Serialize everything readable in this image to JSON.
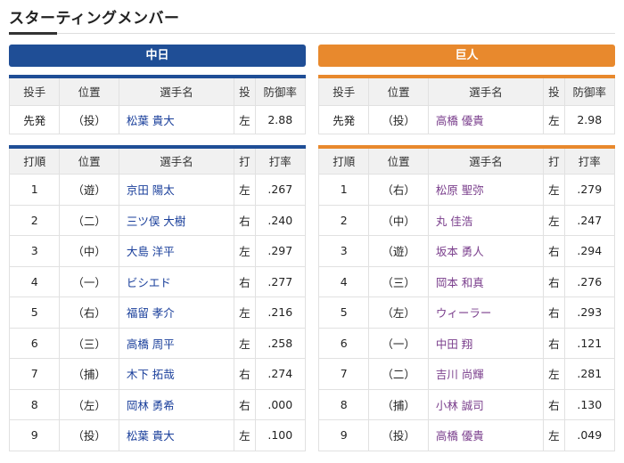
{
  "page": {
    "title": "スターティングメンバー",
    "colors": {
      "home_team": "#1f4e96",
      "away_team": "#e8892d",
      "home_name": "#1a3f9b",
      "away_name": "#7a3e8c"
    }
  },
  "pitcher_headers": [
    "投手",
    "位置",
    "選手名",
    "投",
    "防御率"
  ],
  "lineup_headers": [
    "打順",
    "位置",
    "選手名",
    "打",
    "打率"
  ],
  "teams": [
    {
      "name": "中日",
      "pitcher": {
        "role": "先発",
        "pos": "（投）",
        "name": "松葉 貴大",
        "hand": "左",
        "era": "2.88"
      },
      "lineup": [
        {
          "order": "1",
          "pos": "（遊）",
          "name": "京田 陽太",
          "hand": "左",
          "avg": ".267"
        },
        {
          "order": "2",
          "pos": "（二）",
          "name": "三ツ俣 大樹",
          "hand": "右",
          "avg": ".240"
        },
        {
          "order": "3",
          "pos": "（中）",
          "name": "大島 洋平",
          "hand": "左",
          "avg": ".297"
        },
        {
          "order": "4",
          "pos": "（一）",
          "name": "ビシエド",
          "hand": "右",
          "avg": ".277"
        },
        {
          "order": "5",
          "pos": "（右）",
          "name": "福留 孝介",
          "hand": "左",
          "avg": ".216"
        },
        {
          "order": "6",
          "pos": "（三）",
          "name": "高橋 周平",
          "hand": "左",
          "avg": ".258"
        },
        {
          "order": "7",
          "pos": "（捕）",
          "name": "木下 拓哉",
          "hand": "右",
          "avg": ".274"
        },
        {
          "order": "8",
          "pos": "（左）",
          "name": "岡林 勇希",
          "hand": "右",
          "avg": ".000"
        },
        {
          "order": "9",
          "pos": "（投）",
          "name": "松葉 貴大",
          "hand": "左",
          "avg": ".100"
        }
      ]
    },
    {
      "name": "巨人",
      "pitcher": {
        "role": "先発",
        "pos": "（投）",
        "name": "高橋 優貴",
        "hand": "左",
        "era": "2.98"
      },
      "lineup": [
        {
          "order": "1",
          "pos": "（右）",
          "name": "松原 聖弥",
          "hand": "左",
          "avg": ".279"
        },
        {
          "order": "2",
          "pos": "（中）",
          "name": "丸 佳浩",
          "hand": "左",
          "avg": ".247"
        },
        {
          "order": "3",
          "pos": "（遊）",
          "name": "坂本 勇人",
          "hand": "右",
          "avg": ".294"
        },
        {
          "order": "4",
          "pos": "（三）",
          "name": "岡本 和真",
          "hand": "右",
          "avg": ".276"
        },
        {
          "order": "5",
          "pos": "（左）",
          "name": "ウィーラー",
          "hand": "右",
          "avg": ".293"
        },
        {
          "order": "6",
          "pos": "（一）",
          "name": "中田 翔",
          "hand": "右",
          "avg": ".121"
        },
        {
          "order": "7",
          "pos": "（二）",
          "name": "吉川 尚輝",
          "hand": "左",
          "avg": ".281"
        },
        {
          "order": "8",
          "pos": "（捕）",
          "name": "小林 誠司",
          "hand": "右",
          "avg": ".130"
        },
        {
          "order": "9",
          "pos": "（投）",
          "name": "高橋 優貴",
          "hand": "左",
          "avg": ".049"
        }
      ]
    }
  ]
}
